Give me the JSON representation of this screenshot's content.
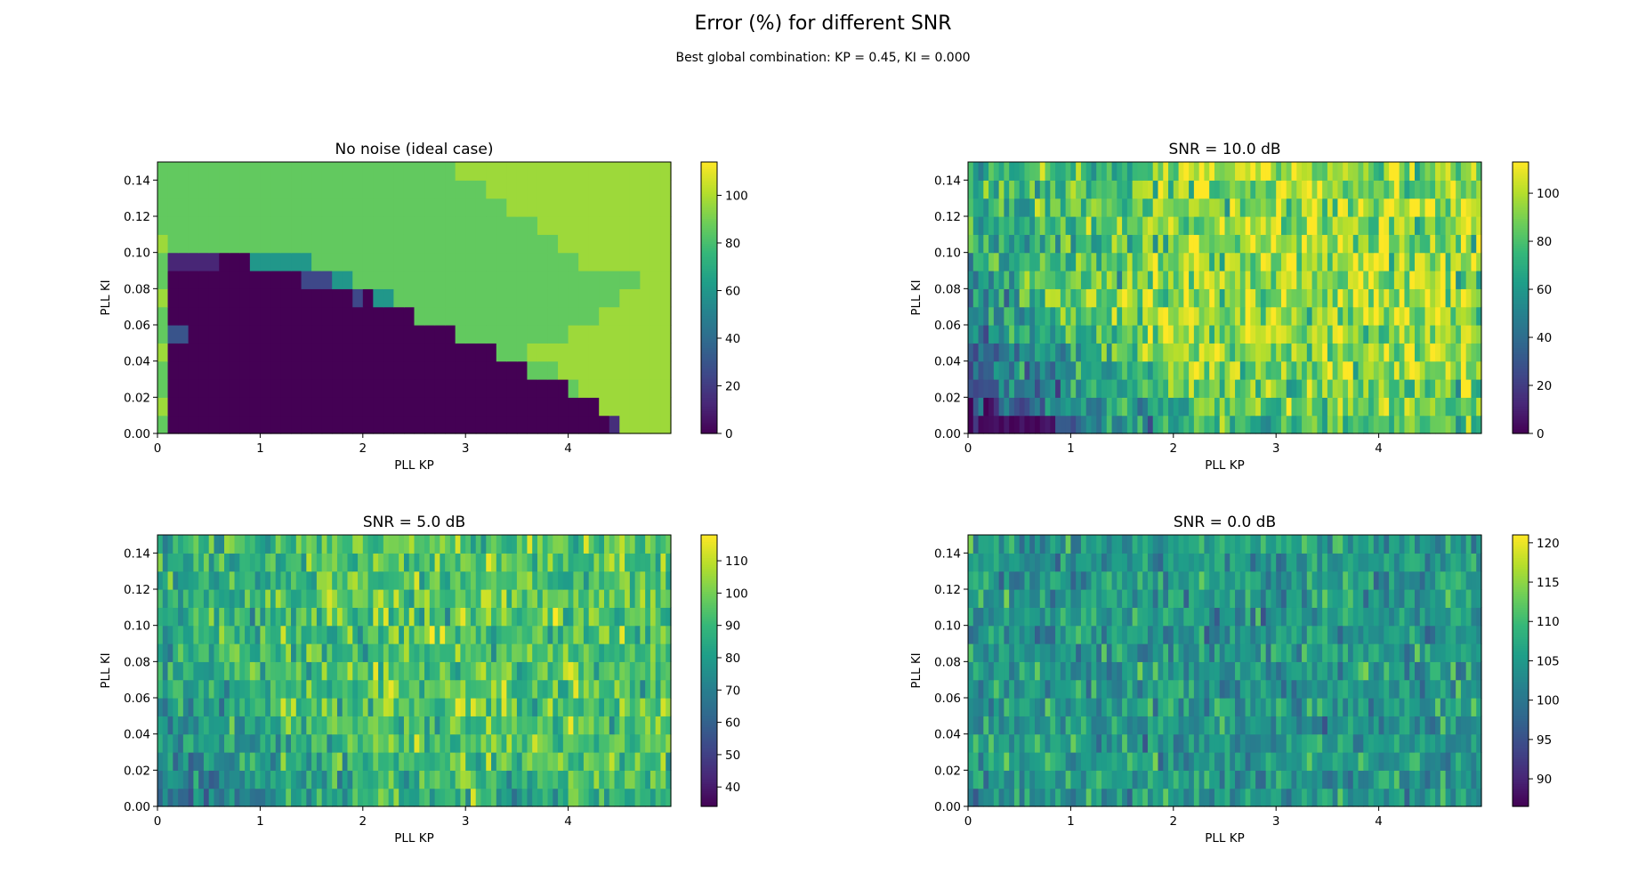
{
  "figure": {
    "title": "Error (%) for different SNR",
    "subtitle": "Best global combination: KP = 0.45, KI = 0.000"
  },
  "colors": {
    "colormap": "viridis",
    "viridis_stops": [
      "#440154",
      "#482878",
      "#3e4989",
      "#31688e",
      "#26828e",
      "#1f9e89",
      "#35b779",
      "#6ece58",
      "#b5de2b",
      "#fde725"
    ]
  },
  "chart_data": [
    {
      "type": "heatmap",
      "title": "No noise (ideal case)",
      "xlabel": "PLL KP",
      "ylabel": "PLL KI",
      "xlim": [
        0,
        5
      ],
      "ylim": [
        0,
        0.15
      ],
      "x_ticks": [
        0,
        1,
        2,
        3,
        4
      ],
      "y_ticks": [
        0.0,
        0.02,
        0.04,
        0.06,
        0.08,
        0.1,
        0.12,
        0.14
      ],
      "x_tick_labels": [
        "0",
        "1",
        "2",
        "3",
        "4"
      ],
      "y_tick_labels": [
        "0.00",
        "0.02",
        "0.04",
        "0.06",
        "0.08",
        "0.10",
        "0.12",
        "0.14"
      ],
      "colorbar": {
        "min": 0,
        "max": 114,
        "ticks": [
          0,
          20,
          40,
          60,
          80,
          100
        ],
        "tick_labels": [
          "0",
          "20",
          "40",
          "60",
          "80",
          "100"
        ]
      },
      "grid": {
        "kp_cells": 50,
        "ki_cells": 15
      },
      "pattern": "ideal",
      "regions": {
        "locked_error": 0,
        "unlocked_error": 86,
        "outer_error": 97,
        "locked_upper_kp_by_ki_row": [
          4.4,
          4.3,
          4.0,
          3.6,
          3.3,
          2.9,
          2.5,
          2.1,
          1.5,
          1.0,
          0.0,
          0.0,
          0.0,
          0.0,
          0.0
        ],
        "outer_start_kp_by_ki_row": [
          4.5,
          4.2,
          4.1,
          3.9,
          3.6,
          4.0,
          4.3,
          4.5,
          4.7,
          4.1,
          3.9,
          3.7,
          3.4,
          3.2,
          2.9
        ]
      }
    },
    {
      "type": "heatmap",
      "title": "SNR = 10.0 dB",
      "xlabel": "PLL KP",
      "ylabel": "PLL KI",
      "xlim": [
        0,
        5
      ],
      "ylim": [
        0,
        0.15
      ],
      "x_ticks": [
        0,
        1,
        2,
        3,
        4
      ],
      "y_ticks": [
        0.0,
        0.02,
        0.04,
        0.06,
        0.08,
        0.1,
        0.12,
        0.14
      ],
      "x_tick_labels": [
        "0",
        "1",
        "2",
        "3",
        "4"
      ],
      "y_tick_labels": [
        "0.00",
        "0.02",
        "0.04",
        "0.06",
        "0.08",
        "0.10",
        "0.12",
        "0.14"
      ],
      "colorbar": {
        "min": 0,
        "max": 113,
        "ticks": [
          0,
          20,
          40,
          60,
          80,
          100
        ],
        "tick_labels": [
          "0",
          "20",
          "40",
          "60",
          "80",
          "100"
        ]
      },
      "grid": {
        "kp_cells": 100,
        "ki_cells": 15
      },
      "pattern": "noisy",
      "noise": {
        "low_ki_low_kp_error": 10,
        "high_error": 95,
        "spread": 22,
        "seed": 11
      }
    },
    {
      "type": "heatmap",
      "title": "SNR = 5.0 dB",
      "xlabel": "PLL KP",
      "ylabel": "PLL KI",
      "xlim": [
        0,
        5
      ],
      "ylim": [
        0,
        0.15
      ],
      "x_ticks": [
        0,
        1,
        2,
        3,
        4
      ],
      "y_ticks": [
        0.0,
        0.02,
        0.04,
        0.06,
        0.08,
        0.1,
        0.12,
        0.14
      ],
      "x_tick_labels": [
        "0",
        "1",
        "2",
        "3",
        "4"
      ],
      "y_tick_labels": [
        "0.00",
        "0.02",
        "0.04",
        "0.06",
        "0.08",
        "0.10",
        "0.12",
        "0.14"
      ],
      "colorbar": {
        "min": 34,
        "max": 118,
        "ticks": [
          40,
          50,
          60,
          70,
          80,
          90,
          100,
          110
        ],
        "tick_labels": [
          "40",
          "50",
          "60",
          "70",
          "80",
          "90",
          "100",
          "110"
        ]
      },
      "grid": {
        "kp_cells": 100,
        "ki_cells": 15
      },
      "pattern": "noisy",
      "noise": {
        "low_ki_low_kp_error": 65,
        "high_error": 95,
        "spread": 14,
        "seed": 23
      }
    },
    {
      "type": "heatmap",
      "title": "SNR = 0.0 dB",
      "xlabel": "PLL KP",
      "ylabel": "PLL KI",
      "xlim": [
        0,
        5
      ],
      "ylim": [
        0,
        0.15
      ],
      "x_ticks": [
        0,
        1,
        2,
        3,
        4
      ],
      "y_ticks": [
        0.0,
        0.02,
        0.04,
        0.06,
        0.08,
        0.1,
        0.12,
        0.14
      ],
      "x_tick_labels": [
        "0",
        "1",
        "2",
        "3",
        "4"
      ],
      "y_tick_labels": [
        "0.00",
        "0.02",
        "0.04",
        "0.06",
        "0.08",
        "0.10",
        "0.12",
        "0.14"
      ],
      "colorbar": {
        "min": 86.5,
        "max": 121,
        "ticks": [
          90,
          95,
          100,
          105,
          110,
          115,
          120
        ],
        "tick_labels": [
          "90",
          "95",
          "100",
          "105",
          "110",
          "115",
          "120"
        ]
      },
      "grid": {
        "kp_cells": 100,
        "ki_cells": 15
      },
      "pattern": "noisy",
      "noise": {
        "low_ki_low_kp_error": 104,
        "high_error": 105,
        "spread": 5.5,
        "seed": 37
      }
    }
  ]
}
